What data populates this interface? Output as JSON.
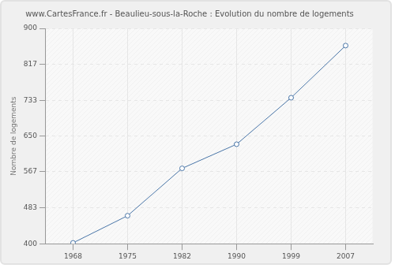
{
  "chart_data": {
    "type": "line",
    "title": "www.CartesFrance.fr - Beaulieu-sous-la-Roche : Evolution du nombre de logements",
    "y_label": "Nombre de logements",
    "categories": [
      "1968",
      "1975",
      "1982",
      "1990",
      "1999",
      "2007"
    ],
    "values": [
      402,
      465,
      575,
      631,
      739,
      860
    ],
    "color": "#4a76a8",
    "marker": "circle",
    "ylim": [
      400,
      900
    ],
    "yticks": [
      400,
      483,
      567,
      650,
      733,
      817,
      900
    ],
    "grid": true
  }
}
